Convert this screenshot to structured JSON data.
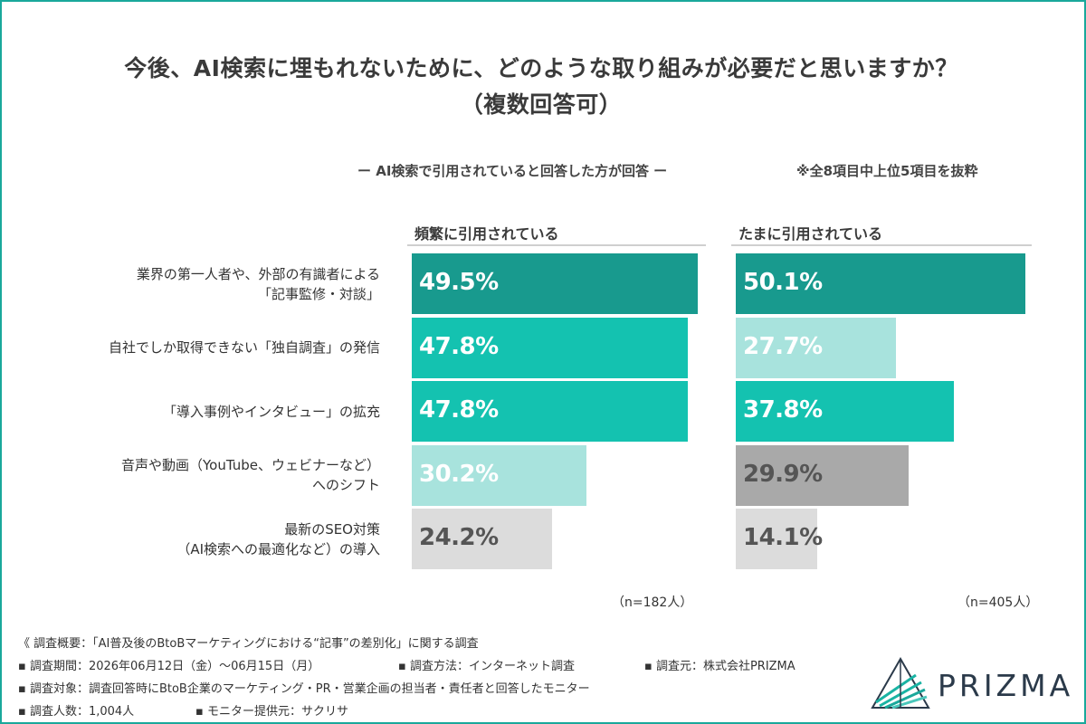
{
  "title_line1": "今後、AI検索に埋もれないために、どのような取り組みが必要だと思いますか？",
  "title_line2": "（複数回答可）",
  "subnote": "ー AI検索で引用されていると回答した方が回答 ー",
  "note_right": "※全8項目中上位5項目を抜粋",
  "colors": {
    "frame": "#1aa89b",
    "dark_teal": "#189a8e",
    "teal": "#14c2b0",
    "light_teal": "#a8e3dd",
    "gray": "#a9a9a9",
    "light_gray": "#dcdcdc"
  },
  "chart_data": {
    "type": "bar",
    "orientation": "horizontal",
    "categories": [
      [
        "業界の第一人者や、外部の有識者による",
        "「記事監修・対談」"
      ],
      [
        "自社でしか取得できない「独自調査」の発信"
      ],
      [
        "「導入事例やインタビュー」の拡充"
      ],
      [
        "音声や動画（YouTube、ウェビナーなど）",
        "へのシフト"
      ],
      [
        "最新のSEO対策",
        "（AI検索への最適化など）の導入"
      ]
    ],
    "series": [
      {
        "name": "頻繁に引用されている",
        "values": [
          49.5,
          47.8,
          47.8,
          30.2,
          24.2
        ],
        "labels": [
          "49.5%",
          "47.8%",
          "47.8%",
          "30.2%",
          "24.2%"
        ],
        "colors": [
          "#189a8e",
          "#14c2b0",
          "#14c2b0",
          "#a8e3dd",
          "#dcdcdc"
        ],
        "label_colors": [
          "#ffffff",
          "#ffffff",
          "#ffffff",
          "#ffffff",
          "#555555"
        ],
        "n": "（n=182人）"
      },
      {
        "name": "たまに引用されている",
        "values": [
          50.1,
          27.7,
          37.8,
          29.9,
          14.1
        ],
        "labels": [
          "50.1%",
          "27.7%",
          "37.8%",
          "29.9%",
          "14.1%"
        ],
        "colors": [
          "#189a8e",
          "#a8e3dd",
          "#14c2b0",
          "#a9a9a9",
          "#dcdcdc"
        ],
        "label_colors": [
          "#ffffff",
          "#ffffff",
          "#ffffff",
          "#555555",
          "#555555"
        ],
        "n": "（n=405人）"
      }
    ],
    "xlim": [
      0,
      50.1
    ],
    "grid": false,
    "legend": "none"
  },
  "footer": {
    "line1": "《 調査概要：「AI普及後のBtoBマーケティングにおける“記事”の差別化」に関する調査",
    "period": "▪ 調査期間：2026年06月12日（金）〜06月15日（月）",
    "method": "▪ 調査方法：インターネット調査",
    "source": "▪ 調査元：株式会社PRIZMA",
    "target": "▪ 調査対象：調査回答時にBtoB企業のマーケティング・PR・営業企画の担当者・責任者と回答したモニター",
    "count": "▪ 調査人数：1,004人",
    "provider": "▪ モニター提供元：サクリサ"
  },
  "logo": {
    "text": "PRIZMA",
    "icon": "prism-logo-icon"
  }
}
